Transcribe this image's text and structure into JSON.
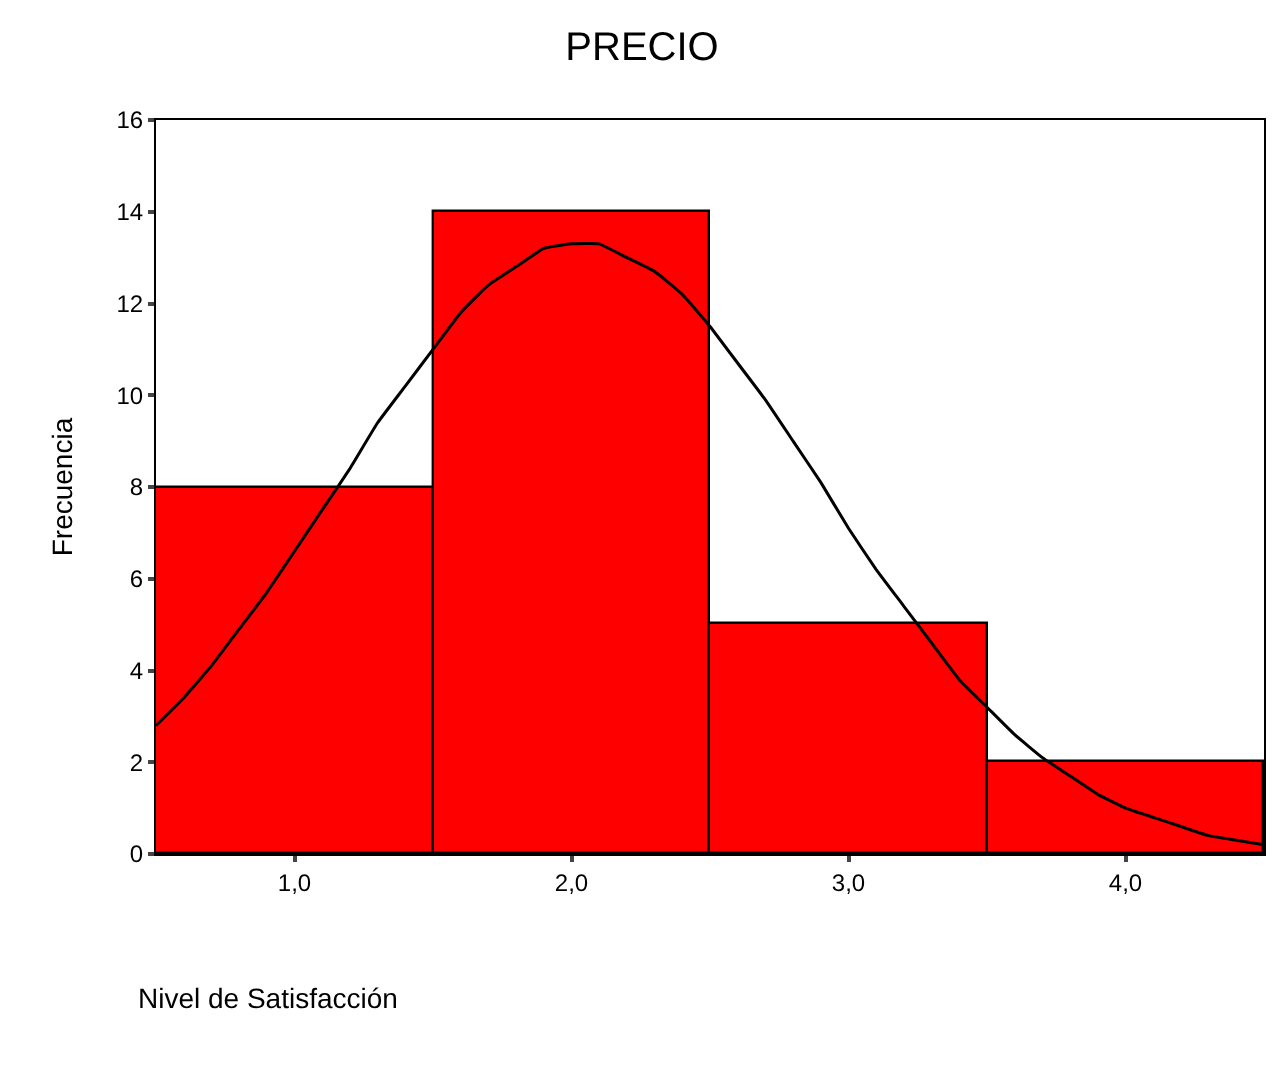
{
  "chart_data": {
    "type": "histogram",
    "title": "PRECIO",
    "xlabel": "Nivel de Satisfacción",
    "ylabel": "Frecuencia",
    "bins": [
      0.5,
      1.5,
      2.5,
      3.5,
      4.5
    ],
    "series": [
      {
        "type": "histogram",
        "color": "#ff0000",
        "values": [
          8,
          14,
          5,
          2
        ]
      },
      {
        "type": "line",
        "color": "#000000",
        "marker": "none",
        "x": [
          0.5,
          0.6,
          0.7,
          0.8,
          0.9,
          1.0,
          1.1,
          1.2,
          1.3,
          1.4,
          1.5,
          1.6,
          1.7,
          1.8,
          1.9,
          2.0,
          2.1,
          2.2,
          2.3,
          2.4,
          2.5,
          2.6,
          2.7,
          2.8,
          2.9,
          3.0,
          3.1,
          3.2,
          3.3,
          3.4,
          3.5,
          3.6,
          3.7,
          3.8,
          3.9,
          4.0,
          4.1,
          4.2,
          4.3,
          4.4,
          4.5
        ],
        "values": [
          2.8,
          3.4,
          4.1,
          4.9,
          5.7,
          6.6,
          7.5,
          8.4,
          9.4,
          10.2,
          11.0,
          11.8,
          12.4,
          12.8,
          13.2,
          13.3,
          13.3,
          13.0,
          12.7,
          12.2,
          11.5,
          10.7,
          9.9,
          9.0,
          8.1,
          7.1,
          6.2,
          5.4,
          4.6,
          3.8,
          3.2,
          2.6,
          2.1,
          1.7,
          1.3,
          1.0,
          0.8,
          0.6,
          0.4,
          0.3,
          0.2
        ]
      }
    ],
    "xlim": [
      0.5,
      4.5
    ],
    "xticks": [
      {
        "value": 1,
        "label": "1,0"
      },
      {
        "value": 2,
        "label": "2,0"
      },
      {
        "value": 3,
        "label": "3,0"
      },
      {
        "value": 4,
        "label": "4,0"
      }
    ],
    "ylim": [
      0,
      16
    ],
    "yticks": [
      0,
      2,
      4,
      6,
      8,
      10,
      12,
      14,
      16
    ],
    "grid": false
  }
}
